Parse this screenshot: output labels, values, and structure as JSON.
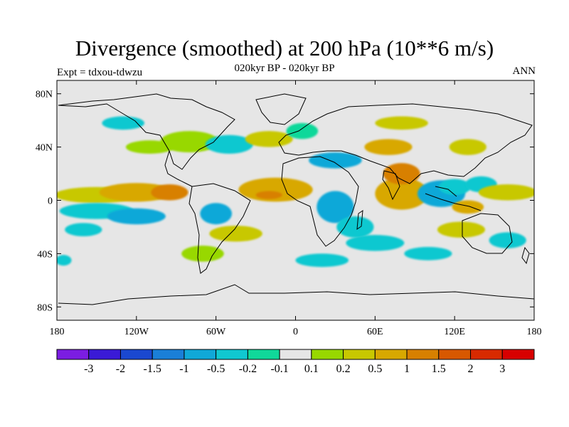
{
  "title": "Divergence (smoothed) at 200 hPa (10**6 m/s)",
  "subtitle": "020kyr BP - 020kyr BP",
  "left_label": "Expt = tdxou-tdwzu",
  "right_label": "ANN",
  "colors": {
    "background_land": "#e6e6e6",
    "coast": "#000000"
  },
  "chart_data": {
    "type": "heatmap",
    "title": "Divergence (smoothed) at 200 hPa (10**6 m/s)",
    "x_ticks": [
      "180",
      "120W",
      "60W",
      "0",
      "60E",
      "120E",
      "180"
    ],
    "x_tick_values": [
      -180,
      -120,
      -60,
      0,
      60,
      120,
      180
    ],
    "y_ticks": [
      "80N",
      "40N",
      "0",
      "40S",
      "80S"
    ],
    "y_tick_values": [
      80,
      40,
      0,
      -40,
      -80
    ],
    "xlim": [
      -180,
      180
    ],
    "ylim": [
      -90,
      90
    ],
    "colorbar": {
      "colors": [
        "#7b1de2",
        "#3a1ad6",
        "#1a48d0",
        "#1a7fd8",
        "#10a8d8",
        "#10c8d0",
        "#10d89a",
        "#e6e6e6",
        "#98d800",
        "#c8c800",
        "#d8a800",
        "#d88000",
        "#d85800",
        "#d82a00",
        "#d80000"
      ],
      "labels": [
        "-3",
        "-2",
        "-1.5",
        "-1",
        "-0.5",
        "-0.2",
        "-0.1",
        "0.1",
        "0.2",
        "0.5",
        "1",
        "1.5",
        "2",
        "3"
      ]
    },
    "regions": [
      {
        "lon": -150,
        "lat": 4,
        "w": 32,
        "h": 6,
        "level": 9
      },
      {
        "lon": -120,
        "lat": 6,
        "w": 28,
        "h": 7,
        "level": 10
      },
      {
        "lon": -95,
        "lat": 6,
        "w": 14,
        "h": 6,
        "level": 11
      },
      {
        "lon": -150,
        "lat": -8,
        "w": 28,
        "h": 6,
        "level": 5
      },
      {
        "lon": -120,
        "lat": -12,
        "w": 22,
        "h": 6,
        "level": 4
      },
      {
        "lon": -160,
        "lat": -22,
        "w": 14,
        "h": 5,
        "level": 5
      },
      {
        "lon": -110,
        "lat": 40,
        "w": 18,
        "h": 5,
        "level": 8
      },
      {
        "lon": -80,
        "lat": 44,
        "w": 22,
        "h": 8,
        "level": 8
      },
      {
        "lon": -50,
        "lat": 42,
        "w": 18,
        "h": 7,
        "level": 5
      },
      {
        "lon": -15,
        "lat": 8,
        "w": 28,
        "h": 9,
        "level": 10
      },
      {
        "lon": -20,
        "lat": 4,
        "w": 10,
        "h": 3,
        "level": 11
      },
      {
        "lon": -20,
        "lat": 46,
        "w": 18,
        "h": 6,
        "level": 9
      },
      {
        "lon": 5,
        "lat": 52,
        "w": 12,
        "h": 6,
        "level": 6
      },
      {
        "lon": 30,
        "lat": 30,
        "w": 20,
        "h": 6,
        "level": 4
      },
      {
        "lon": -60,
        "lat": -10,
        "w": 12,
        "h": 8,
        "level": 4
      },
      {
        "lon": -70,
        "lat": -40,
        "w": 16,
        "h": 6,
        "level": 8
      },
      {
        "lon": -45,
        "lat": -25,
        "w": 20,
        "h": 6,
        "level": 9
      },
      {
        "lon": 30,
        "lat": -5,
        "w": 14,
        "h": 12,
        "level": 4
      },
      {
        "lon": 45,
        "lat": -20,
        "w": 14,
        "h": 8,
        "level": 5
      },
      {
        "lon": 60,
        "lat": -32,
        "w": 22,
        "h": 6,
        "level": 5
      },
      {
        "lon": 80,
        "lat": 5,
        "w": 20,
        "h": 12,
        "level": 10
      },
      {
        "lon": 80,
        "lat": 20,
        "w": 14,
        "h": 8,
        "level": 11
      },
      {
        "lon": 70,
        "lat": 40,
        "w": 18,
        "h": 6,
        "level": 10
      },
      {
        "lon": 110,
        "lat": 5,
        "w": 18,
        "h": 10,
        "level": 4
      },
      {
        "lon": 120,
        "lat": 10,
        "w": 12,
        "h": 6,
        "level": 5
      },
      {
        "lon": 140,
        "lat": 12,
        "w": 12,
        "h": 6,
        "level": 5
      },
      {
        "lon": 160,
        "lat": 6,
        "w": 22,
        "h": 6,
        "level": 9
      },
      {
        "lon": 130,
        "lat": -5,
        "w": 12,
        "h": 5,
        "level": 10
      },
      {
        "lon": 125,
        "lat": -22,
        "w": 18,
        "h": 6,
        "level": 9
      },
      {
        "lon": 160,
        "lat": -30,
        "w": 14,
        "h": 6,
        "level": 5
      },
      {
        "lon": 100,
        "lat": -40,
        "w": 18,
        "h": 5,
        "level": 5
      },
      {
        "lon": 20,
        "lat": -45,
        "w": 20,
        "h": 5,
        "level": 5
      },
      {
        "lon": -130,
        "lat": 58,
        "w": 16,
        "h": 5,
        "level": 5
      },
      {
        "lon": 80,
        "lat": 58,
        "w": 20,
        "h": 5,
        "level": 9
      },
      {
        "lon": 130,
        "lat": 40,
        "w": 14,
        "h": 6,
        "level": 9
      },
      {
        "lon": -175,
        "lat": -45,
        "w": 6,
        "h": 4,
        "level": 5
      }
    ]
  }
}
